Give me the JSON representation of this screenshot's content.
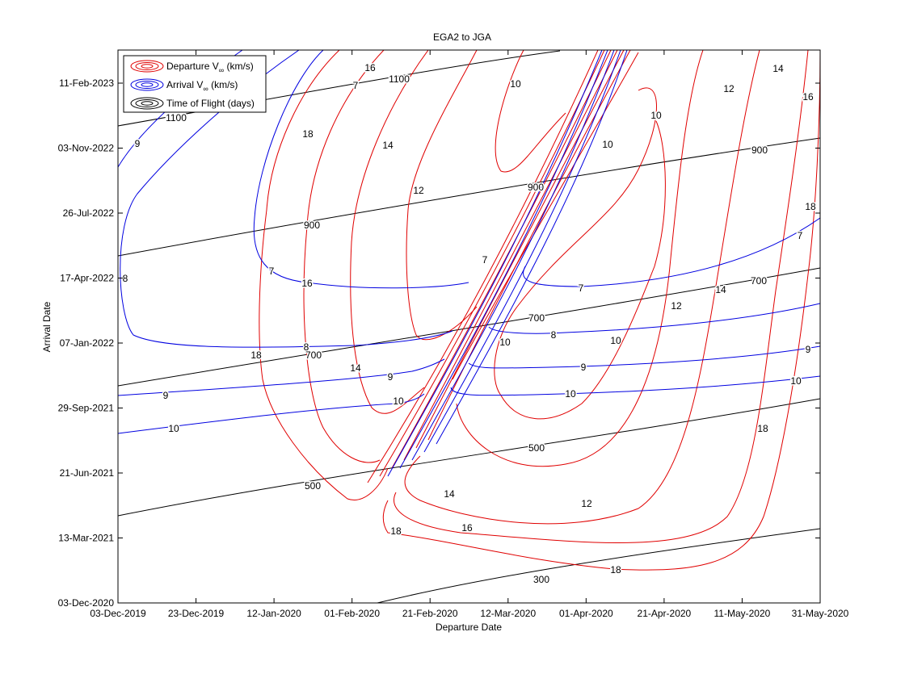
{
  "chart_data": {
    "type": "contour",
    "title": "EGA2 to JGA",
    "xlabel": "Departure Date",
    "ylabel": "Arrival Date",
    "x_ticks": [
      "03-Dec-2019",
      "23-Dec-2019",
      "12-Jan-2020",
      "01-Feb-2020",
      "21-Feb-2020",
      "12-Mar-2020",
      "01-Apr-2020",
      "21-Apr-2020",
      "11-May-2020",
      "31-May-2020"
    ],
    "y_ticks": [
      "03-Dec-2020",
      "13-Mar-2021",
      "21-Jun-2021",
      "29-Sep-2021",
      "07-Jan-2022",
      "17-Apr-2022",
      "26-Jul-2022",
      "03-Nov-2022",
      "11-Feb-2023"
    ],
    "xlim": [
      "03-Dec-2019",
      "31-May-2020"
    ],
    "ylim": [
      "03-Dec-2020",
      "20-Mar-2023"
    ],
    "grid": false,
    "legend_position": "top-left",
    "legend": [
      {
        "label": "Departure V",
        "unit": " (km/s)",
        "color": "#e00000"
      },
      {
        "label": "Arrival V",
        "unit": " (km/s)",
        "color": "#0000e0"
      },
      {
        "label": "Time of Flight (days)",
        "unit": "",
        "color": "#000000"
      }
    ],
    "series": [
      {
        "name": "Time of Flight (days)",
        "color": "#000000",
        "levels": [
          300,
          500,
          700,
          900,
          1100
        ],
        "lines": [
          {
            "level": 300,
            "points": [
              [
                "19-Feb-2020",
                "03-Dec-2020"
              ],
              [
                "18-Apr-2020",
                "28-Jan-2021"
              ],
              [
                "31-May-2020",
                "06-Mar-2021"
              ]
            ]
          },
          {
            "level": 500,
            "points": [
              [
                "03-Dec-2019",
                "15-Apr-2021"
              ],
              [
                "22-Mar-2020",
                "21-Aug-2021"
              ],
              [
                "31-May-2020",
                "27-Oct-2021"
              ]
            ]
          },
          {
            "level": 700,
            "points": [
              [
                "03-Dec-2019",
                "22-Nov-2021"
              ],
              [
                "01-Apr-2020",
                "24-Apr-2022"
              ],
              [
                "31-May-2020",
                "22-May-2022"
              ]
            ]
          },
          {
            "level": 900,
            "points": [
              [
                "03-Dec-2019",
                "12-Jun-2022"
              ],
              [
                "15-Mar-2020",
                "15-Sep-2022"
              ],
              [
                "31-May-2020",
                "29-Nov-2022"
              ]
            ]
          },
          {
            "level": 1100,
            "points": [
              [
                "03-Dec-2019",
                "29-Dec-2022"
              ],
              [
                "06-Mar-2020",
                "18-Mar-2023"
              ]
            ]
          }
        ]
      },
      {
        "name": "Departure V∞ (km/s)",
        "color": "#e00000",
        "levels": [
          7,
          10,
          12,
          14,
          16,
          18
        ],
        "lines": [
          {
            "level": 10,
            "points": [
              [
                "11-Mar-2020",
                "25-Mar-2023"
              ],
              [
                "04-Mar-2020",
                "15-Nov-2022"
              ],
              [
                "16-Mar-2020",
                "05-Nov-2022"
              ],
              [
                "21-Mar-2020",
                "01-Jun-2022"
              ]
            ]
          },
          {
            "level": 12,
            "points": [
              [
                "28-Feb-2020",
                "20-Mar-2023"
              ],
              [
                "17-Feb-2020",
                "26-Jul-2022"
              ],
              [
                "20-Feb-2020",
                "20-Jan-2022"
              ],
              [
                "09-Mar-2020",
                "01-Feb-2022"
              ]
            ]
          },
          {
            "level": 14,
            "points": [
              [
                "22-Feb-2020",
                "20-Mar-2023"
              ],
              [
                "02-Feb-2020",
                "03-Nov-2022"
              ],
              [
                "02-Feb-2020",
                "01-Dec-2021"
              ],
              [
                "13-Feb-2020",
                "29-Sep-2021"
              ],
              [
                "25-Feb-2020",
                "06-Nov-2021"
              ]
            ]
          },
          {
            "level": 16,
            "points": [
              [
                "13-Feb-2020",
                "20-Mar-2023"
              ],
              [
                "21-Jan-2020",
                "01-Jan-2023"
              ],
              [
                "18-Jan-2020",
                "20-Dec-2021"
              ],
              [
                "01-Feb-2020",
                "01-Aug-2021"
              ],
              [
                "16-Feb-2020",
                "30-Aug-2021"
              ]
            ]
          },
          {
            "level": 18,
            "points": [
              [
                "04-Feb-2020",
                "20-Mar-2023"
              ],
              [
                "29-Dec-2019",
                "26-Jul-2022"
              ],
              [
                "21-Dec-2019",
                "20-Nov-2021"
              ],
              [
                "10-Jan-2020",
                "26-May-2021"
              ],
              [
                "24-Jan-2020",
                "05-May-2021"
              ],
              [
                "15-Feb-2020",
                "15-Jul-2021"
              ]
            ]
          }
        ]
      },
      {
        "name": "Arrival V∞ (km/s)",
        "color": "#0000e0",
        "levels": [
          7,
          8,
          9,
          10
        ],
        "lines": [
          {
            "level": 7,
            "points": [
              [
                "28-Dec-2019",
                "12-Jul-2022"
              ],
              [
                "01-Jan-2020",
                "03-Sep-2022"
              ],
              [
                "21-Jan-2020",
                "02-Dec-2022"
              ],
              [
                "05-Feb-2020",
                "16-Mar-2023"
              ]
            ]
          },
          {
            "level": 8,
            "points": [
              [
                "12-Jan-2020",
                "10-Jan-2022"
              ],
              [
                "07-Mar-2020",
                "24-Jan-2022"
              ],
              [
                "21-Apr-2020",
                "07-Mar-2022"
              ],
              [
                "31-May-2020",
                "22-Mar-2022"
              ]
            ]
          },
          {
            "level": 9,
            "points": [
              [
                "03-Dec-2019",
                "05-Oct-2021"
              ],
              [
                "15-Feb-2020",
                "04-Nov-2021"
              ],
              [
                "31-May-2020",
                "28-Dec-2021"
              ]
            ]
          },
          {
            "level": 10,
            "points": [
              [
                "03-Dec-2019",
                "03-Aug-2021"
              ],
              [
                "25-Feb-2020",
                "21-Sep-2021"
              ],
              [
                "31-May-2020",
                "19-Nov-2021"
              ]
            ]
          }
        ]
      }
    ],
    "contour_labels": {
      "tof": [
        "300",
        "500",
        "500",
        "700",
        "700",
        "700",
        "900",
        "900",
        "900",
        "1100",
        "1100"
      ],
      "departure": [
        "7",
        "7",
        "10",
        "10",
        "10",
        "10",
        "10",
        "12",
        "12",
        "12",
        "12",
        "14",
        "14",
        "14",
        "14",
        "14",
        "16",
        "16",
        "16",
        "16",
        "18",
        "18",
        "18",
        "18",
        "18",
        "18"
      ],
      "arrival": [
        "7",
        "7",
        "7",
        "8",
        "8",
        "8",
        "9",
        "9",
        "9",
        "9",
        "9",
        "10",
        "10",
        "10",
        "10"
      ]
    }
  }
}
